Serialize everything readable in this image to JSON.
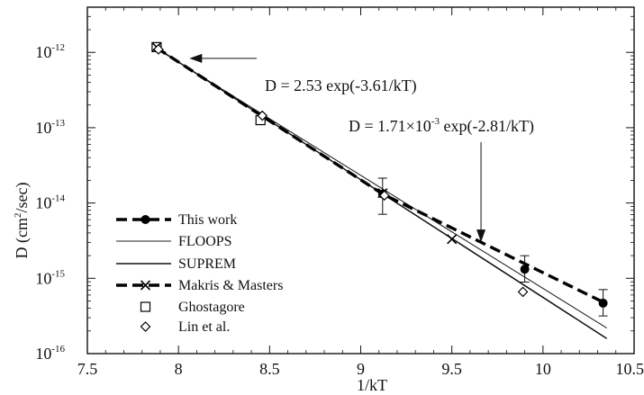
{
  "chart_data": {
    "type": "scatter",
    "xlabel": "1/kT",
    "ylabel": "D (cm²/sec)",
    "xlim": [
      7.5,
      10.5
    ],
    "ylim_log10": [
      -16,
      -11.4
    ],
    "y_scale": "log",
    "grid": false,
    "legend_position": "bottom-left",
    "x_ticks": [
      {
        "value": 7.5,
        "label": "7.5"
      },
      {
        "value": 8,
        "label": "8"
      },
      {
        "value": 8.5,
        "label": "8.5"
      },
      {
        "value": 9,
        "label": "9"
      },
      {
        "value": 9.5,
        "label": "9.5"
      },
      {
        "value": 10,
        "label": "10"
      },
      {
        "value": 10.5,
        "label": "10.5"
      }
    ],
    "y_ticks": [
      {
        "exp": -16,
        "base": "10",
        "sup": "-16"
      },
      {
        "exp": -15,
        "base": "10",
        "sup": "-15"
      },
      {
        "exp": -14,
        "base": "10",
        "sup": "-14"
      },
      {
        "exp": -13,
        "base": "10",
        "sup": "-13"
      },
      {
        "exp": -12,
        "base": "10",
        "sup": "-12"
      }
    ],
    "series": [
      {
        "name": "This work",
        "style": "thick-dashed-with-filled-circles",
        "line": [
          [
            7.88,
            -11.94
          ],
          [
            9.12,
            -13.88
          ],
          [
            10.35,
            -15.34
          ]
        ],
        "points": [
          {
            "x": 9.12,
            "log10_y": -13.88,
            "err_low": -14.15,
            "err_high": -13.67
          },
          {
            "x": 9.9,
            "log10_y": -14.88,
            "err_low": -15.05,
            "err_high": -14.7
          },
          {
            "x": 10.33,
            "log10_y": -15.33,
            "err_low": -15.5,
            "err_high": -15.15
          }
        ]
      },
      {
        "name": "FLOOPS",
        "style": "thin-solid",
        "line": [
          [
            7.88,
            -11.95
          ],
          [
            10.35,
            -15.66
          ]
        ]
      },
      {
        "name": "SUPREM",
        "style": "solid",
        "line": [
          [
            7.88,
            -11.94
          ],
          [
            10.35,
            -15.8
          ]
        ]
      },
      {
        "name": "Makris & Masters",
        "style": "thick-dashed-with-crosses",
        "points": [
          {
            "x": 7.88,
            "log10_y": -11.93
          },
          {
            "x": 9.12,
            "log10_y": -13.87
          },
          {
            "x": 9.5,
            "log10_y": -14.48
          }
        ]
      },
      {
        "name": "Ghostagore",
        "style": "open-squares",
        "points": [
          {
            "x": 7.88,
            "log10_y": -11.93
          },
          {
            "x": 8.45,
            "log10_y": -12.9
          }
        ]
      },
      {
        "name": "Lin et al.",
        "style": "open-diamonds",
        "points": [
          {
            "x": 7.89,
            "log10_y": -11.96
          },
          {
            "x": 8.46,
            "log10_y": -12.84
          },
          {
            "x": 9.13,
            "log10_y": -13.9
          },
          {
            "x": 9.89,
            "log10_y": -15.18
          }
        ]
      }
    ],
    "annotations": [
      {
        "id": "fit1",
        "text": "D = 2.53 exp(-3.61/kT)",
        "arrow_to": {
          "x": 8.06,
          "log10_y": -12.08
        }
      },
      {
        "id": "fit2",
        "pre": "D = 1.71×10",
        "sup": "-3",
        "post": " exp(-2.81/kT)",
        "arrow_to": {
          "x": 9.66,
          "log10_y": -14.52
        }
      }
    ]
  }
}
